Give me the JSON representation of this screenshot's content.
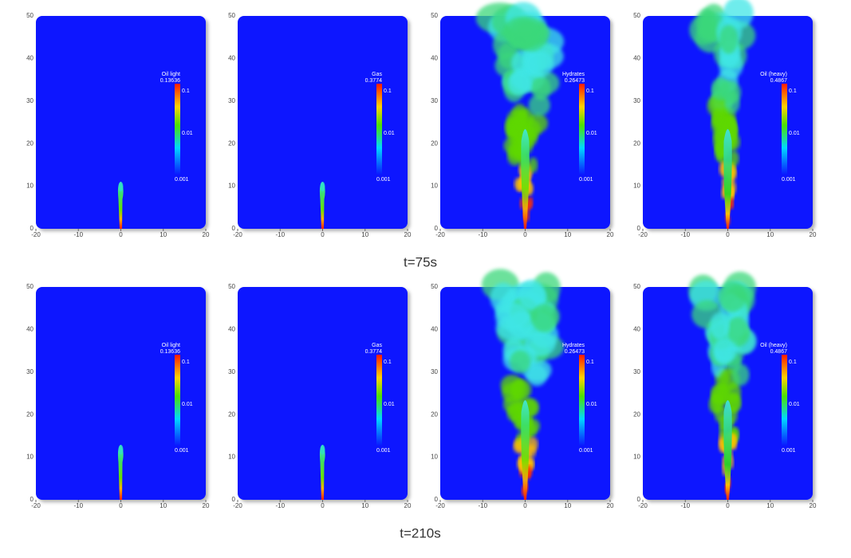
{
  "rows": [
    {
      "caption": "t=75s",
      "panels": [
        {
          "field": "Oil light",
          "max": "0.13636",
          "bar_ticks": [
            "0.1",
            "0.01",
            "0.001"
          ]
        },
        {
          "field": "Gas",
          "max": "0.3774",
          "bar_ticks": [
            "0.1",
            "0.01",
            "0.001"
          ]
        },
        {
          "field": "Hydrates",
          "max": "0.26473",
          "bar_ticks": [
            "0.1",
            "0.01",
            "0.001"
          ]
        },
        {
          "field": "Oil (heavy)",
          "max": "0.4867",
          "bar_ticks": [
            "0.1",
            "0.01",
            "0.001"
          ]
        }
      ]
    },
    {
      "caption": "t=210s",
      "panels": [
        {
          "field": "Oil light",
          "max": "0.13636",
          "bar_ticks": [
            "0.1",
            "0.01",
            "0.001"
          ]
        },
        {
          "field": "Gas",
          "max": "0.3774",
          "bar_ticks": [
            "0.1",
            "0.01",
            "0.001"
          ]
        },
        {
          "field": "Hydrates",
          "max": "0.26473",
          "bar_ticks": [
            "0.1",
            "0.01",
            "0.001"
          ]
        },
        {
          "field": "Oil (heavy)",
          "max": "0.4867",
          "bar_ticks": [
            "0.1",
            "0.01",
            "0.001"
          ]
        }
      ]
    }
  ],
  "x_ticks": [
    "-20",
    "-10",
    "0",
    "10",
    "20"
  ],
  "y_ticks": [
    "0",
    "10",
    "20",
    "30",
    "40",
    "50"
  ]
}
